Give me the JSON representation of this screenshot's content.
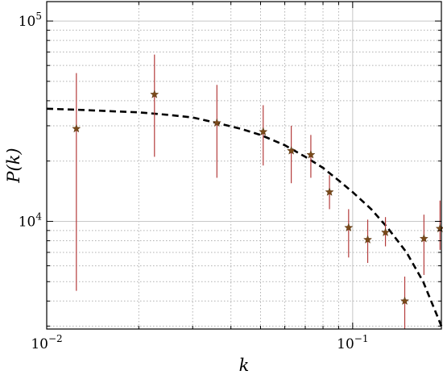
{
  "chart_data": {
    "type": "scatter",
    "xlabel": "k",
    "ylabel": "P(k)",
    "xscale": "log",
    "yscale": "log",
    "xlim": [
      0.01,
      0.195
    ],
    "ylim": [
      2900,
      125000
    ],
    "grid": true,
    "x_ticks": [
      {
        "value": 0.01,
        "base": "10",
        "exp": "−2"
      },
      {
        "value": 0.1,
        "base": "10",
        "exp": "−1"
      }
    ],
    "y_ticks": [
      {
        "value": 10000,
        "base": "10",
        "exp": "4"
      },
      {
        "value": 100000,
        "base": "10",
        "exp": "5"
      }
    ],
    "series": [
      {
        "kind": "points_with_errorbars",
        "marker": "star",
        "marker_color": "#7a4a1a",
        "error_color": "#b43c3c",
        "x": [
          0.0125,
          0.0225,
          0.036,
          0.051,
          0.063,
          0.073,
          0.084,
          0.097,
          0.112,
          0.128,
          0.148,
          0.171,
          0.193
        ],
        "y": [
          29000,
          43000,
          31000,
          28000,
          22500,
          21500,
          14000,
          9300,
          8100,
          8800,
          4000,
          8200,
          9200
        ],
        "y_err_low": [
          24500,
          22000,
          14500,
          9000,
          7000,
          5000,
          2500,
          2700,
          1900,
          1300,
          1100,
          2800,
          2000
        ],
        "y_err_high": [
          26000,
          25000,
          17000,
          10000,
          7500,
          5500,
          3000,
          2200,
          2100,
          1700,
          1300,
          2600,
          3500
        ]
      },
      {
        "kind": "curve",
        "style": "dashed",
        "color": "#000000",
        "x": [
          0.01,
          0.013,
          0.016,
          0.02,
          0.025,
          0.03,
          0.036,
          0.043,
          0.05,
          0.06,
          0.07,
          0.08,
          0.09,
          0.1,
          0.115,
          0.13,
          0.15,
          0.17,
          0.195
        ],
        "y": [
          36500,
          36000,
          35500,
          35000,
          34000,
          33000,
          31000,
          29000,
          27000,
          24000,
          21000,
          18500,
          16000,
          14000,
          11500,
          9300,
          7000,
          5000,
          3000
        ]
      }
    ]
  }
}
